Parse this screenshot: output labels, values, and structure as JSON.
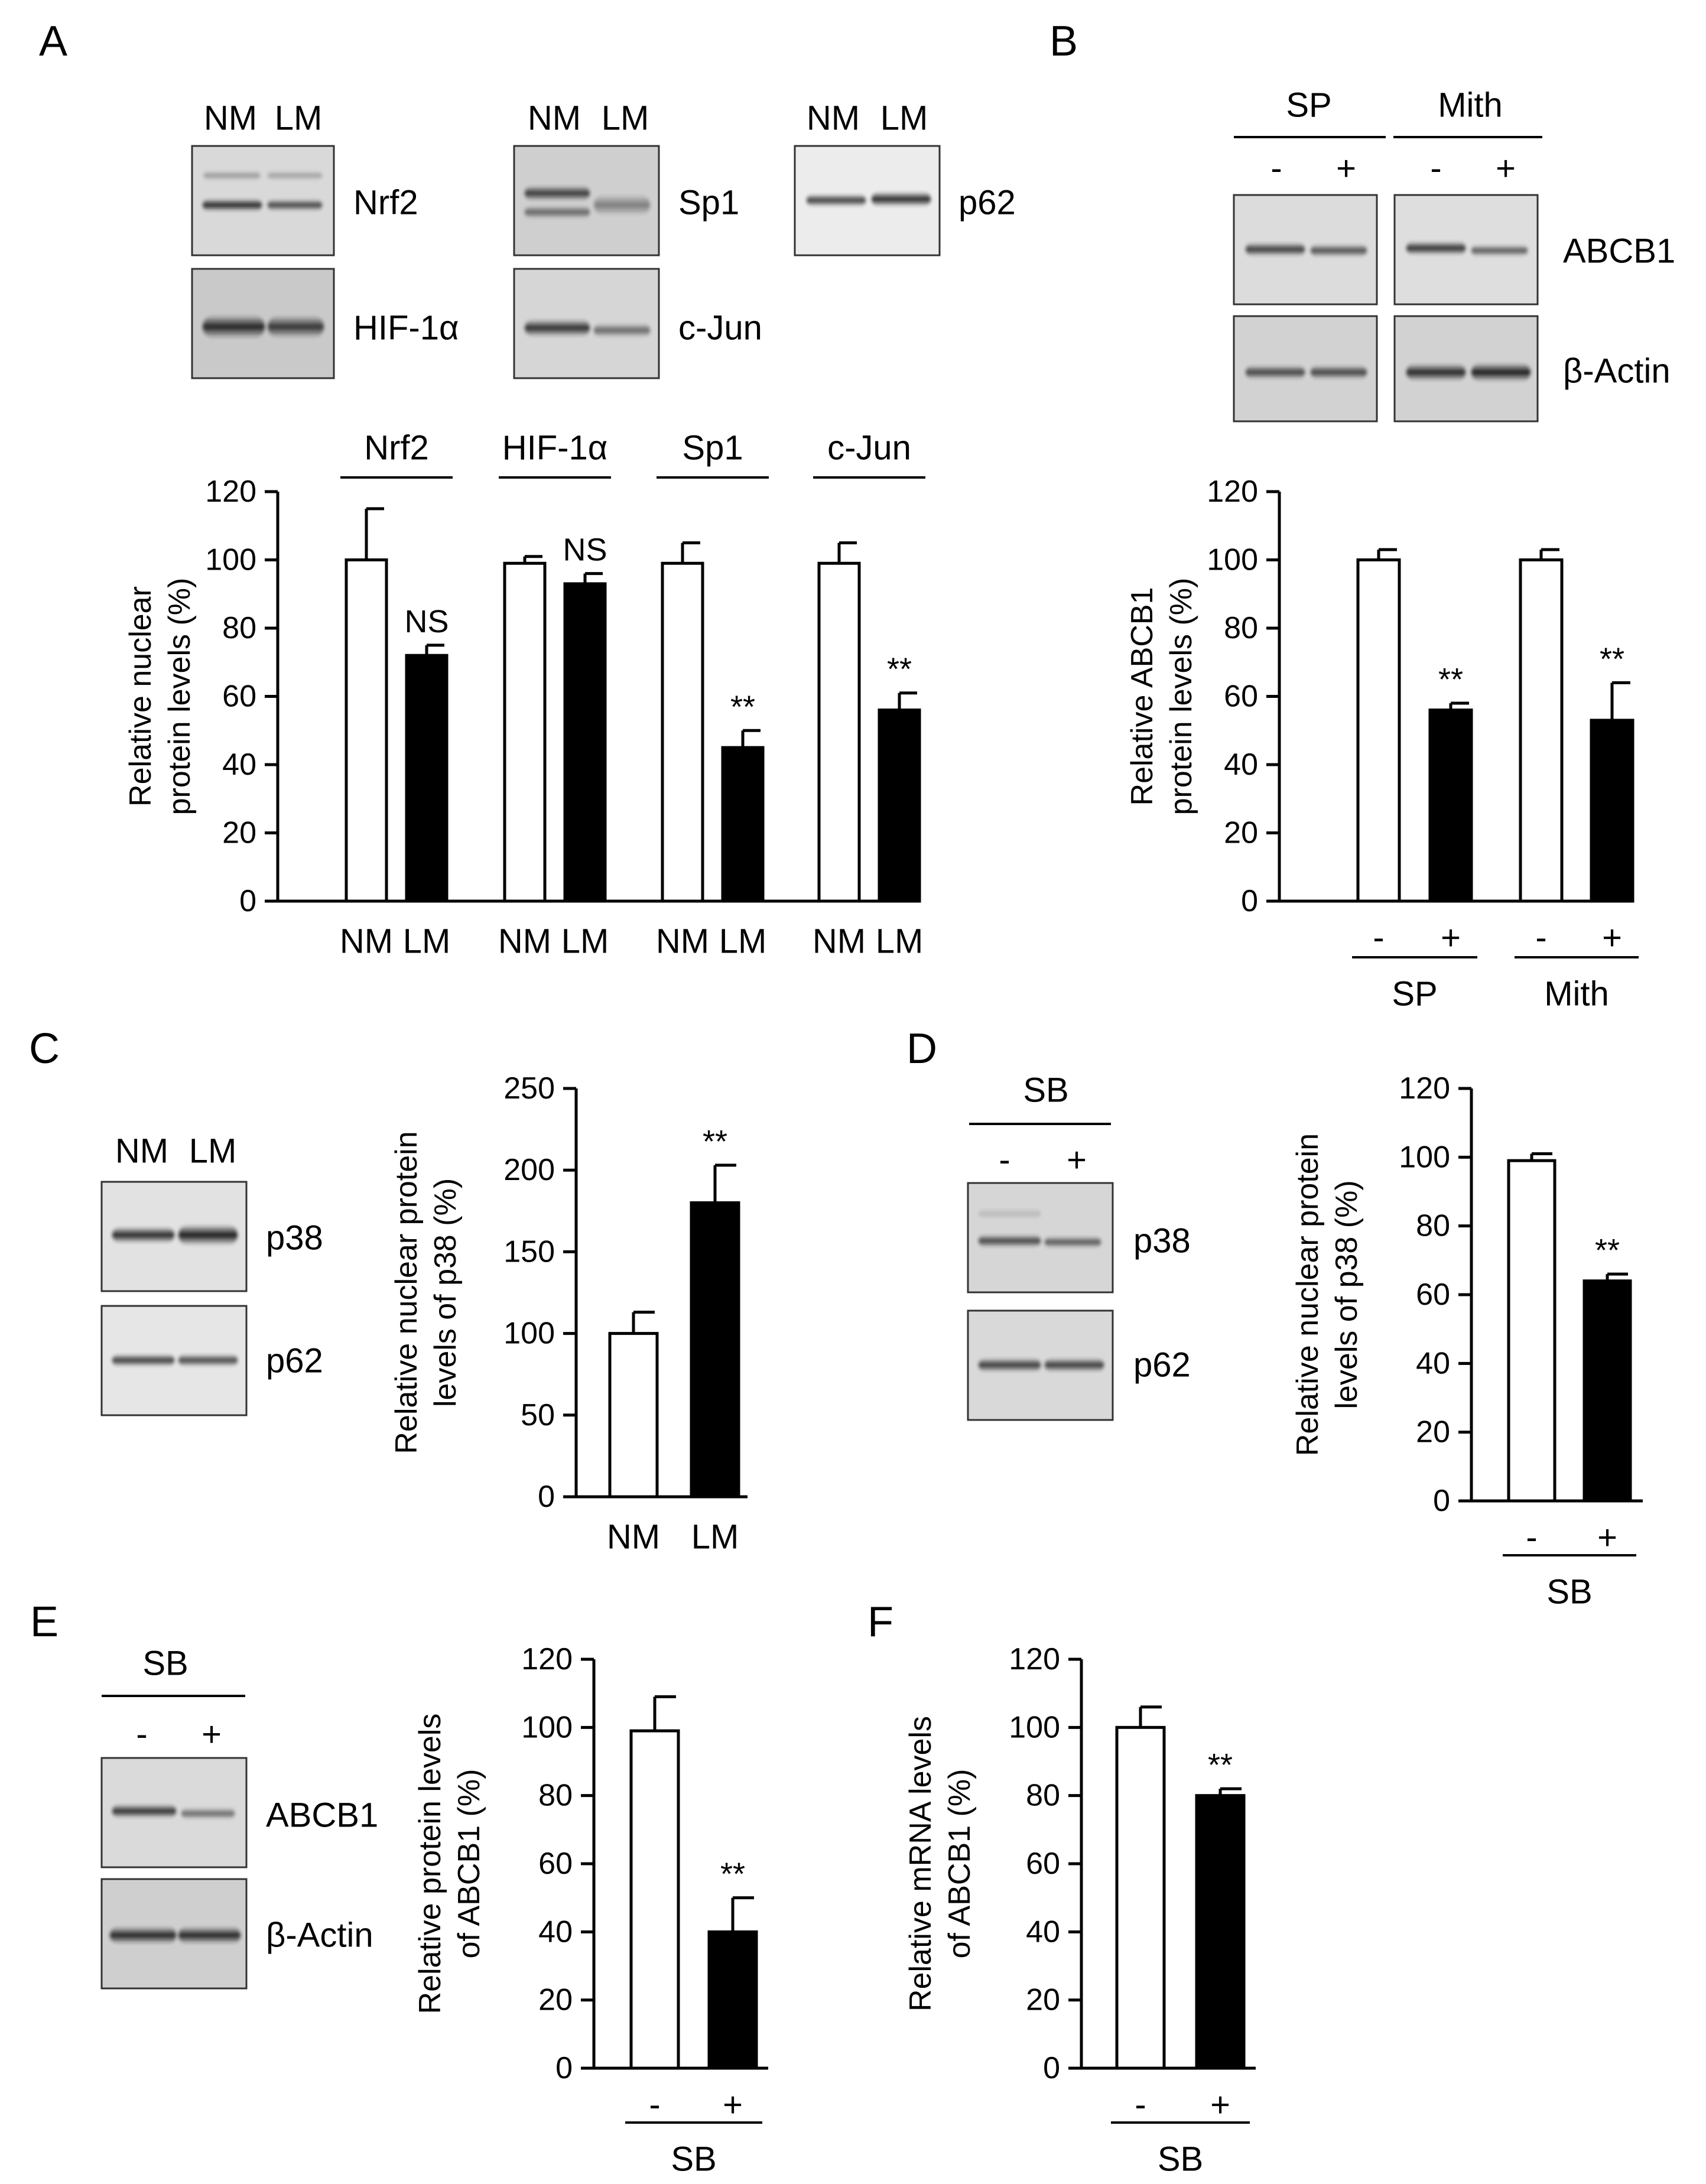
{
  "panels": [
    {
      "id": "A",
      "letter": "A",
      "blots": [
        {
          "lanes": [
            "NM",
            "LM"
          ],
          "rows": [
            "Nrf2",
            "HIF-1α"
          ]
        },
        {
          "lanes": [
            "NM",
            "LM"
          ],
          "rows": [
            "Sp1",
            "c-Jun"
          ]
        },
        {
          "lanes": [
            "NM",
            "LM"
          ],
          "rows": [
            "p62"
          ]
        }
      ],
      "chart": {
        "type": "bar",
        "ylabel_lines": [
          "Relative nuclear",
          "protein levels (%)"
        ],
        "ylim": [
          0,
          120
        ],
        "yticks": [
          0,
          20,
          40,
          60,
          80,
          100,
          120
        ],
        "groups": [
          "Nrf2",
          "HIF-1α",
          "Sp1",
          "c-Jun"
        ],
        "bar_labels": [
          "NM",
          "LM",
          "NM",
          "LM",
          "NM",
          "LM",
          "NM",
          "LM"
        ],
        "values": [
          100,
          72,
          99,
          93,
          99,
          45,
          99,
          56
        ],
        "errors": [
          15,
          3,
          2,
          3,
          6,
          5,
          6,
          5
        ],
        "fills": [
          "white",
          "black",
          "white",
          "black",
          "white",
          "black",
          "white",
          "black"
        ],
        "sig": [
          "",
          "NS",
          "",
          "NS",
          "",
          "**",
          "",
          "**"
        ],
        "group_line": "above",
        "treatment_groups": []
      }
    },
    {
      "id": "B",
      "letter": "B",
      "blots": [
        {
          "groups": [
            "SP",
            "Mith"
          ],
          "lanes": [
            "-",
            "+",
            "-",
            "+"
          ],
          "rows": [
            "ABCB1",
            "β-Actin"
          ]
        }
      ],
      "chart": {
        "type": "bar",
        "ylabel_lines": [
          "Relative ABCB1",
          "protein levels (%)"
        ],
        "ylim": [
          0,
          120
        ],
        "yticks": [
          0,
          20,
          40,
          60,
          80,
          100,
          120
        ],
        "groups": [
          "SP",
          "Mith"
        ],
        "bar_labels": [
          "-",
          "+",
          "-",
          "+"
        ],
        "values": [
          100,
          56,
          100,
          53
        ],
        "errors": [
          3,
          2,
          3,
          11
        ],
        "fills": [
          "white",
          "black",
          "white",
          "black"
        ],
        "sig": [
          "",
          "**",
          "",
          "**"
        ],
        "group_line": "below"
      }
    },
    {
      "id": "C",
      "letter": "C",
      "blots": [
        {
          "lanes": [
            "NM",
            "LM"
          ],
          "rows": [
            "p38",
            "p62"
          ]
        }
      ],
      "chart": {
        "type": "bar",
        "ylabel_lines": [
          "Relative nuclear protein",
          "levels of p38 (%)"
        ],
        "ylim": [
          0,
          250
        ],
        "yticks": [
          0,
          50,
          100,
          150,
          200,
          250
        ],
        "groups": [],
        "bar_labels": [
          "NM",
          "LM"
        ],
        "values": [
          100,
          180
        ],
        "errors": [
          13,
          23
        ],
        "fills": [
          "white",
          "black"
        ],
        "sig": [
          "",
          "**"
        ],
        "group_line": "none"
      }
    },
    {
      "id": "D",
      "letter": "D",
      "blots": [
        {
          "groups": [
            "SB"
          ],
          "lanes": [
            "-",
            "+"
          ],
          "rows": [
            "p38",
            "p62"
          ]
        }
      ],
      "chart": {
        "type": "bar",
        "ylabel_lines": [
          "Relative nuclear protein",
          "levels of p38 (%)"
        ],
        "ylim": [
          0,
          120
        ],
        "yticks": [
          0,
          20,
          40,
          60,
          80,
          100,
          120
        ],
        "groups": [
          "SB"
        ],
        "bar_labels": [
          "-",
          "+"
        ],
        "values": [
          99,
          64
        ],
        "errors": [
          2,
          2
        ],
        "fills": [
          "white",
          "black"
        ],
        "sig": [
          "",
          "**"
        ],
        "group_line": "below"
      }
    },
    {
      "id": "E",
      "letter": "E",
      "blots": [
        {
          "groups": [
            "SB"
          ],
          "lanes": [
            "-",
            "+"
          ],
          "rows": [
            "ABCB1",
            "β-Actin"
          ]
        }
      ],
      "chart": {
        "type": "bar",
        "ylabel_lines": [
          "Relative protein levels",
          "of ABCB1 (%)"
        ],
        "ylim": [
          0,
          120
        ],
        "yticks": [
          0,
          20,
          40,
          60,
          80,
          100,
          120
        ],
        "groups": [
          "SB"
        ],
        "bar_labels": [
          "-",
          "+"
        ],
        "values": [
          99,
          40
        ],
        "errors": [
          10,
          10
        ],
        "fills": [
          "white",
          "black"
        ],
        "sig": [
          "",
          "**"
        ],
        "group_line": "below"
      }
    },
    {
      "id": "F",
      "letter": "F",
      "blots": [],
      "chart": {
        "type": "bar",
        "ylabel_lines": [
          "Relative mRNA levels",
          "of ABCB1 (%)"
        ],
        "ylim": [
          0,
          120
        ],
        "yticks": [
          0,
          20,
          40,
          60,
          80,
          100,
          120
        ],
        "groups": [
          "SB"
        ],
        "bar_labels": [
          "-",
          "+"
        ],
        "values": [
          100,
          80
        ],
        "errors": [
          6,
          2
        ],
        "fills": [
          "white",
          "black"
        ],
        "sig": [
          "",
          "**"
        ],
        "group_line": "below"
      }
    }
  ],
  "chart_data": [
    {
      "type": "bar",
      "panel": "A",
      "categories": [
        "Nrf2",
        "HIF-1α",
        "Sp1",
        "c-Jun"
      ],
      "series": [
        {
          "name": "NM",
          "values": [
            100,
            99,
            99,
            99
          ]
        },
        {
          "name": "LM",
          "values": [
            72,
            93,
            45,
            56
          ]
        }
      ],
      "ylabel": "Relative nuclear protein levels (%)",
      "ylim": [
        0,
        120
      ]
    },
    {
      "type": "bar",
      "panel": "B",
      "categories": [
        "SP -",
        "SP +",
        "Mith -",
        "Mith +"
      ],
      "values": [
        100,
        56,
        100,
        53
      ],
      "ylabel": "Relative ABCB1 protein levels (%)",
      "ylim": [
        0,
        120
      ]
    },
    {
      "type": "bar",
      "panel": "C",
      "categories": [
        "NM",
        "LM"
      ],
      "values": [
        100,
        180
      ],
      "ylabel": "Relative nuclear protein levels of p38 (%)",
      "ylim": [
        0,
        250
      ]
    },
    {
      "type": "bar",
      "panel": "D",
      "categories": [
        "SB -",
        "SB +"
      ],
      "values": [
        99,
        64
      ],
      "ylabel": "Relative nuclear protein levels of p38 (%)",
      "ylim": [
        0,
        120
      ]
    },
    {
      "type": "bar",
      "panel": "E",
      "categories": [
        "SB -",
        "SB +"
      ],
      "values": [
        99,
        40
      ],
      "ylabel": "Relative protein levels of ABCB1 (%)",
      "ylim": [
        0,
        120
      ]
    },
    {
      "type": "bar",
      "panel": "F",
      "categories": [
        "SB -",
        "SB +"
      ],
      "values": [
        100,
        80
      ],
      "ylabel": "Relative mRNA levels of ABCB1 (%)",
      "ylim": [
        0,
        120
      ]
    }
  ]
}
